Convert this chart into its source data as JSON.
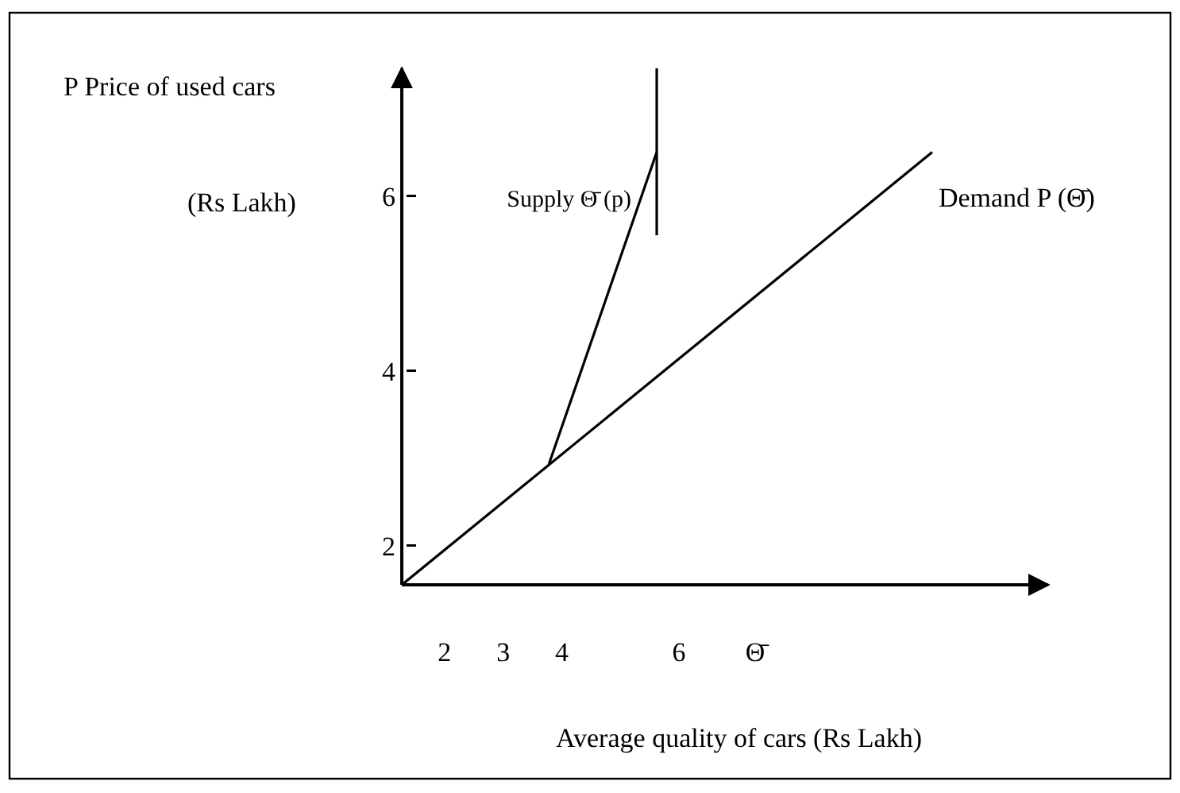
{
  "chart_data": {
    "type": "line",
    "xlabel": "Average quality of cars (Rs Lakh)",
    "ylabel": "P Price of used cars (Rs Lakh)",
    "xlim": [
      1.27,
      12.3
    ],
    "ylim": [
      1.55,
      7.46
    ],
    "xticks": [
      2,
      3,
      4,
      6,
      {
        "value": 7.3,
        "label": "Θ̄"
      }
    ],
    "yticks": [
      2,
      4,
      6
    ],
    "grid": false,
    "legend": false,
    "marker": "none",
    "line_style": "solid",
    "series": [
      {
        "name": "Demand P (Θ̄)",
        "color": "#000000",
        "x": [
          1.27,
          10.32
        ],
        "values": [
          1.55,
          6.5
        ]
      },
      {
        "name": "Supply Θ̄ (p)",
        "color": "#000000",
        "x": [
          3.78,
          5.62
        ],
        "values": [
          2.93,
          6.5
        ]
      },
      {
        "color": "#000000",
        "x": [
          5.62,
          5.62
        ],
        "values": [
          5.55,
          7.46
        ]
      }
    ]
  }
}
